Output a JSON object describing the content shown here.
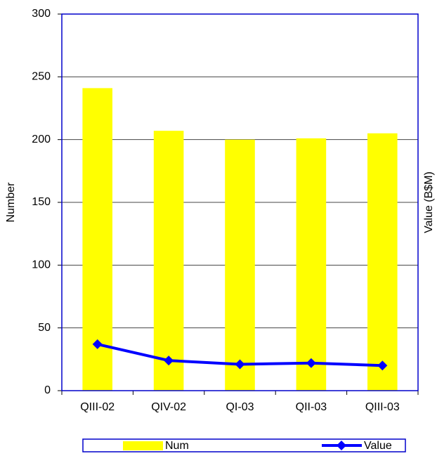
{
  "chart_data": {
    "type": "bar-line",
    "categories": [
      "QIII-02",
      "QIV-02",
      "QI-03",
      "QII-03",
      "QIII-03"
    ],
    "series": [
      {
        "name": "Num",
        "type": "bar",
        "color": "#ffff00",
        "values": [
          241,
          207,
          200,
          201,
          205
        ]
      },
      {
        "name": "Value",
        "type": "line",
        "color": "#0000ff",
        "axis": "y2",
        "values": [
          37,
          24,
          21,
          22,
          20
        ]
      }
    ],
    "y_label": "Number",
    "y2_label": "Value (B$M)",
    "ylim": [
      0,
      300
    ],
    "yticks": [
      0,
      50,
      100,
      150,
      200,
      250,
      300
    ],
    "y2lim": [
      0,
      300
    ],
    "grid": true,
    "legend": "bottom"
  }
}
